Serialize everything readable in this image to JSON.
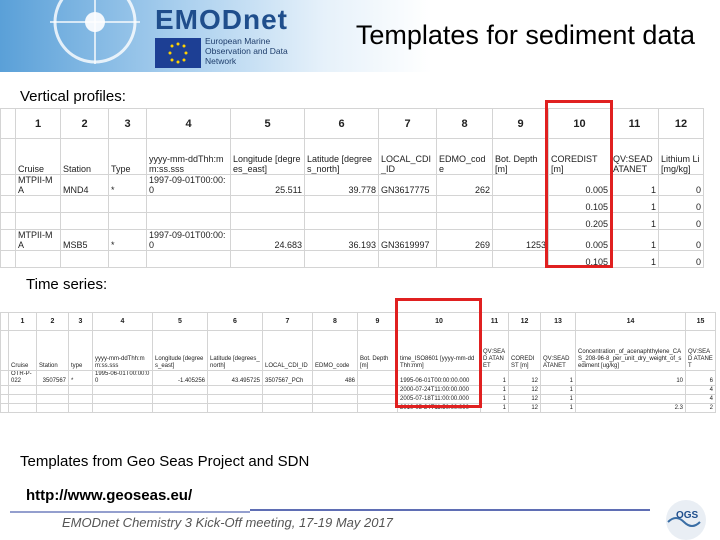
{
  "header": {
    "logo": "EMODnet",
    "logo_subtitle": "European Marine Observation and Data Network",
    "title": "Templates for sediment data"
  },
  "section1": {
    "label": "Vertical profiles:",
    "table": {
      "columns": [
        "1",
        "2",
        "3",
        "4",
        "5",
        "6",
        "7",
        "8",
        "9",
        "10",
        "11",
        "12"
      ],
      "rows": [
        [
          "Cruise",
          "Station",
          "Type",
          "yyyy-mm-ddThh:mm:ss.sss",
          "Longitude [degrees_east]",
          "Latitude [degrees_north]",
          "LOCAL_CDI_ID",
          "EDMO_code",
          "Bot. Depth [m]",
          "COREDIST [m]",
          "QV:SEAD ATANET",
          "Lithium Li [mg/kg]"
        ],
        [
          "MTPII-MA",
          "MND4",
          "*",
          "1997-09-01T00:00:0",
          "25.511",
          "39.778",
          "GN3617775",
          "262",
          null,
          "0.005",
          "1",
          "0"
        ],
        [
          null,
          null,
          null,
          null,
          null,
          null,
          null,
          null,
          null,
          "0.105",
          "1",
          "0"
        ],
        [
          null,
          null,
          null,
          null,
          null,
          null,
          null,
          null,
          null,
          "0.205",
          "1",
          "0"
        ],
        [
          "MTPII-MA",
          "MSB5",
          "*",
          "1997-09-01T00:00:0",
          "24.683",
          "36.193",
          "GN3619997",
          "269",
          "1253",
          "0.005",
          "1",
          "0"
        ],
        [
          null,
          null,
          null,
          null,
          null,
          null,
          null,
          null,
          null,
          "0.105",
          "1",
          "0"
        ]
      ]
    }
  },
  "section2": {
    "label": "Time series:",
    "table": {
      "columns": [
        "1",
        "2",
        "3",
        "4",
        "5",
        "6",
        "7",
        "8",
        "9",
        "10",
        "11",
        "12",
        "13",
        "14",
        "15"
      ],
      "rows": [
        [
          "Cruise",
          "Station",
          "type",
          "yyyy-mm-ddThh:mm:ss.sss",
          "Longitude [degrees_east]",
          "Latitude [degrees_north]",
          "LOCAL_CDI_ID",
          "EDMO_code",
          "Bot. Depth [m]",
          "time_ISO8601 [yyyy-mm-ddThh:mm]",
          "QV:SEAD ATANET",
          "COREDIST [m]",
          "QV:SEAD ATANET",
          "Concentration_of_acenaphthylene_CAS_208-96-8_per_unit_dry_weight_of_sediment [ug/kg]",
          "QV:SEAD ATANET"
        ],
        [
          "OTR-P-022",
          "3507567",
          "*",
          "1995-06-01T00:00:00",
          "-1.405256",
          "43.495725",
          "3507567_PCh",
          "486",
          null,
          "1995-06-01T00:00:00.000",
          "1",
          "12",
          "1",
          "10",
          "6"
        ],
        [
          null,
          null,
          null,
          null,
          null,
          null,
          null,
          null,
          null,
          "2000-07-24T11:00:00.000",
          "1",
          "12",
          "1",
          null,
          "4"
        ],
        [
          null,
          null,
          null,
          null,
          null,
          null,
          null,
          null,
          null,
          "2005-07-18T11:00:00.000",
          "1",
          "12",
          "1",
          null,
          "4"
        ],
        [
          null,
          null,
          null,
          null,
          null,
          null,
          null,
          null,
          null,
          "2010-05-24T11:50:00.000",
          "1",
          "12",
          "1",
          "2.3",
          "2"
        ]
      ]
    }
  },
  "notes": [
    "Templates from Geo Seas Project and SDN",
    "http://www.geoseas.eu/"
  ],
  "footer": {
    "text": "EMODnet Chemistry 3 Kick-Off meeting, 17-19 May 2017",
    "logo": "OGS"
  }
}
